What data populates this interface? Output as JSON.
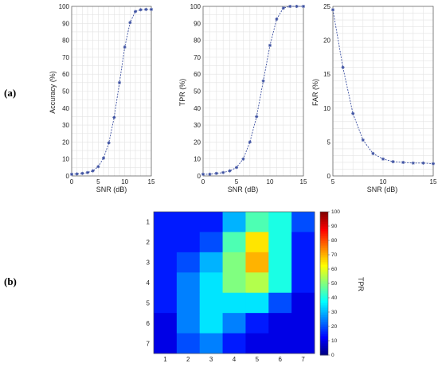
{
  "panel_labels": {
    "a": "(a)",
    "b": "(b)"
  },
  "chart_data": [
    {
      "type": "line",
      "panel": "(a)",
      "xlabel": "SNR (dB)",
      "ylabel": "Accuracy (%)",
      "xlim": [
        0,
        15
      ],
      "ylim": [
        0,
        100
      ],
      "xticks": [
        0,
        5,
        10,
        15
      ],
      "yticks": [
        0,
        10,
        20,
        30,
        40,
        50,
        60,
        70,
        80,
        90,
        100
      ],
      "grid": true,
      "series": [
        {
          "x": [
            0,
            1,
            2,
            3,
            4,
            5,
            6,
            7,
            8,
            9,
            10,
            11,
            12,
            13,
            14,
            15
          ],
          "y": [
            1,
            1.2,
            1.5,
            2,
            3,
            5.5,
            10.5,
            19.5,
            34.5,
            55,
            76,
            90.5,
            97,
            98,
            98.2,
            98.2
          ],
          "color": "#3b4fa0"
        }
      ]
    },
    {
      "type": "line",
      "panel": "(a)",
      "xlabel": "SNR (dB)",
      "ylabel": "TPR (%)",
      "xlim": [
        0,
        15
      ],
      "ylim": [
        0,
        100
      ],
      "xticks": [
        0,
        5,
        10,
        15
      ],
      "yticks": [
        0,
        10,
        20,
        30,
        40,
        50,
        60,
        70,
        80,
        90,
        100
      ],
      "grid": true,
      "series": [
        {
          "x": [
            0,
            1,
            2,
            3,
            4,
            5,
            6,
            7,
            8,
            9,
            10,
            11,
            12,
            13,
            14,
            15
          ],
          "y": [
            1,
            1,
            1.5,
            2,
            3,
            5,
            10,
            20,
            35,
            56,
            77,
            92.5,
            99,
            100,
            100,
            100
          ],
          "color": "#3b4fa0"
        }
      ]
    },
    {
      "type": "line",
      "panel": "(a)",
      "xlabel": "SNR (dB)",
      "ylabel": "FAR (%)",
      "xlim": [
        5,
        15
      ],
      "ylim": [
        0,
        25
      ],
      "xticks": [
        5,
        10,
        15
      ],
      "yticks": [
        0,
        5,
        10,
        15,
        20,
        25
      ],
      "grid": true,
      "series": [
        {
          "x": [
            5,
            6,
            7,
            8,
            9,
            10,
            11,
            12,
            13,
            14,
            15
          ],
          "y": [
            24.5,
            16,
            9.2,
            5.3,
            3.3,
            2.5,
            2.1,
            2.0,
            1.9,
            1.9,
            1.8
          ],
          "color": "#3b4fa0"
        }
      ]
    },
    {
      "type": "heatmap",
      "panel": "(b)",
      "xlabel": "",
      "ylabel": "",
      "x_categories": [
        "1",
        "2",
        "3",
        "4",
        "5",
        "6",
        "7"
      ],
      "y_categories": [
        "1",
        "2",
        "3",
        "4",
        "5",
        "6",
        "7"
      ],
      "values": [
        [
          15,
          15,
          15,
          30,
          45,
          40,
          20
        ],
        [
          15,
          15,
          20,
          45,
          65,
          40,
          15
        ],
        [
          15,
          20,
          30,
          50,
          70,
          40,
          15
        ],
        [
          15,
          25,
          35,
          50,
          55,
          40,
          15
        ],
        [
          15,
          25,
          35,
          35,
          35,
          20,
          10
        ],
        [
          10,
          25,
          35,
          25,
          15,
          10,
          10
        ],
        [
          10,
          20,
          25,
          15,
          10,
          10,
          10
        ]
      ],
      "colorbar": {
        "label": "TPR",
        "min": 0,
        "max": 100,
        "ticks": [
          0,
          10,
          20,
          30,
          40,
          50,
          60,
          70,
          80,
          90,
          100
        ]
      }
    }
  ]
}
